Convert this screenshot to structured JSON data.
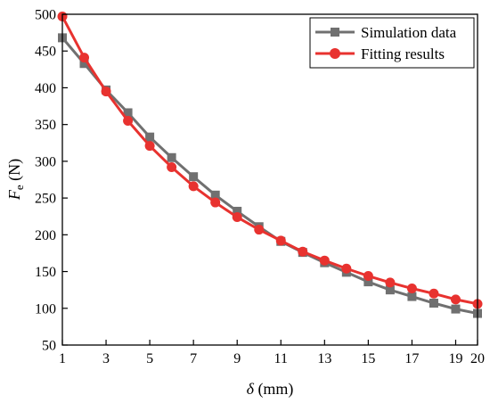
{
  "colors": {
    "series_0": "#707070",
    "series_1": "#e8322f",
    "axis": "#000000"
  },
  "chart_data": {
    "type": "line",
    "title": "",
    "xlabel_symbol": "δ",
    "xlabel_unit": " (mm)",
    "ylabel_symbol": "F",
    "ylabel_subscript": "e",
    "ylabel_unit": " (N)",
    "xlim": [
      1,
      20
    ],
    "ylim": [
      50,
      500
    ],
    "xticks": [
      1,
      3,
      5,
      7,
      9,
      11,
      13,
      15,
      17,
      19,
      20
    ],
    "yticks": [
      50,
      100,
      150,
      200,
      250,
      300,
      350,
      400,
      450,
      500
    ],
    "grid": false,
    "legend_position": "top-right",
    "x": [
      1,
      2,
      3,
      4,
      5,
      6,
      7,
      8,
      9,
      10,
      11,
      12,
      13,
      14,
      15,
      16,
      17,
      18,
      19,
      20
    ],
    "series": [
      {
        "name": "Simulation data",
        "marker": "square",
        "values": [
          468,
          433,
          397,
          366,
          333,
          305,
          279,
          254,
          232,
          211,
          191,
          176,
          162,
          149,
          136,
          125,
          116,
          107,
          99,
          93
        ]
      },
      {
        "name": "Fitting results",
        "marker": "circle",
        "values": [
          497,
          441,
          395,
          355,
          321,
          292,
          266,
          244,
          224,
          207,
          192,
          177,
          165,
          154,
          144,
          135,
          127,
          120,
          112,
          106
        ]
      }
    ]
  }
}
